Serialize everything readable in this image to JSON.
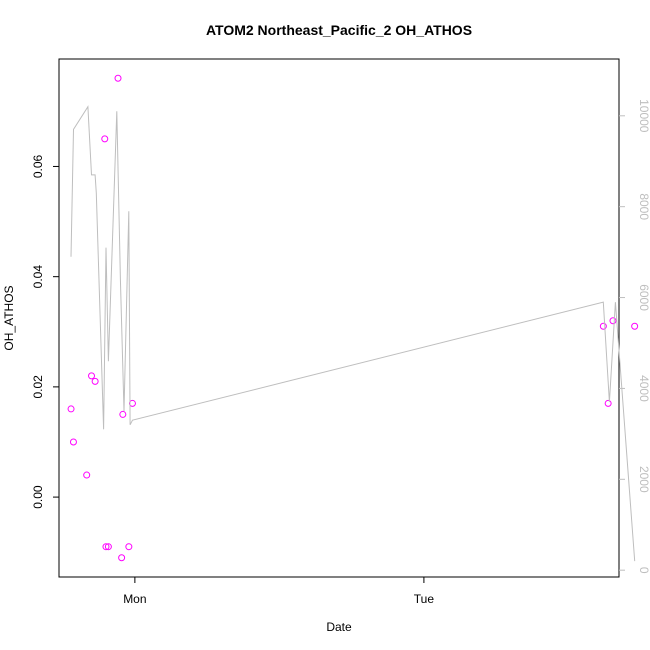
{
  "chart_data": {
    "type": "scatter",
    "title": "ATOM2 Northeast_Pacific_2 OH_ATHOS",
    "xlabel": "Date",
    "ylabel": "OH_ATHOS",
    "x_ticks": [
      "Mon",
      "Tue"
    ],
    "xlim_hours": [
      -6.3,
      40.2
    ],
    "ylim": [
      -0.0145,
      0.0795
    ],
    "y_ticks": [
      0.0,
      0.02,
      0.04,
      0.06
    ],
    "y_tick_labels": [
      "0.00",
      "0.02",
      "0.04",
      "0.06"
    ],
    "right_axis": {
      "ylim": [
        -150,
        11250
      ],
      "ticks": [
        0,
        2000,
        4000,
        6000,
        8000,
        10000
      ],
      "tick_labels": [
        "0",
        "2000",
        "4000",
        "6000",
        "8000",
        "10000"
      ],
      "color": "#bebebe"
    },
    "grid": false,
    "legend": "none",
    "series": [
      {
        "kind": "points",
        "axis": "left",
        "color": "#ff00ff",
        "marker": "open-circle",
        "x_hours": [
          -5.3,
          -5.1,
          -4.0,
          -3.6,
          -3.3,
          -2.5,
          -2.4,
          -2.2,
          -1.4,
          -1.1,
          -1.0,
          -0.5,
          -0.2,
          38.9,
          39.3,
          39.7,
          41.5
        ],
        "values": [
          0.016,
          0.01,
          0.004,
          0.022,
          0.021,
          0.065,
          -0.009,
          -0.009,
          0.076,
          -0.011,
          0.015,
          -0.009,
          0.017,
          0.031,
          0.017,
          0.032,
          0.031
        ]
      },
      {
        "kind": "line",
        "axis": "right",
        "color": "#bebebe",
        "x_hours": [
          -5.3,
          -5.1,
          -3.9,
          -3.6,
          -3.3,
          -3.2,
          -2.6,
          -2.4,
          -2.2,
          -1.5,
          -1.2,
          -0.9,
          -0.5,
          -0.4,
          -0.2,
          38.9,
          39.4,
          39.9,
          41.5
        ],
        "values": [
          6900,
          9700,
          10200,
          8700,
          8700,
          8300,
          3100,
          7100,
          4600,
          10100,
          6400,
          3500,
          7900,
          3200,
          3300,
          5900,
          3700,
          5900,
          200
        ]
      }
    ]
  }
}
